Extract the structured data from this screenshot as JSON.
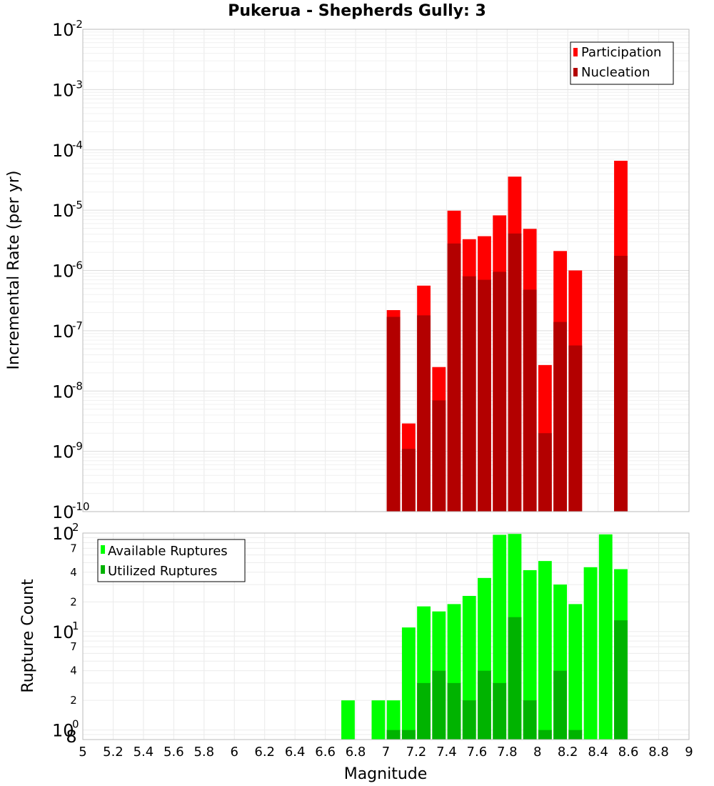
{
  "chart_data": [
    {
      "type": "bar",
      "title": "Pukerua - Shepherds Gully: 3",
      "xlabel": "",
      "ylabel": "Incremental Rate (per yr)",
      "yscale": "log",
      "xlim": [
        5,
        9
      ],
      "ylim": [
        1e-10,
        0.01
      ],
      "grid": true,
      "legend_position": "top-right",
      "bar_width": 0.1,
      "x": [
        7.05,
        7.15,
        7.25,
        7.35,
        7.45,
        7.55,
        7.65,
        7.75,
        7.85,
        7.95,
        8.05,
        8.15,
        8.25,
        8.55
      ],
      "series": [
        {
          "name": "Participation",
          "color": "#ff0000",
          "values": [
            2.2e-07,
            2.9e-09,
            5.6e-07,
            2.5e-08,
            9.8e-06,
            3.3e-06,
            3.7e-06,
            8.2e-06,
            3.6e-05,
            4.9e-06,
            2.7e-08,
            2.1e-06,
            1e-06,
            6.6e-05
          ]
        },
        {
          "name": "Nucleation",
          "color": "#b30000",
          "values": [
            1.7e-07,
            1.1e-09,
            1.8e-07,
            7e-09,
            2.8e-06,
            8e-07,
            7e-07,
            9.5e-07,
            4.1e-06,
            4.8e-07,
            2e-09,
            1.4e-07,
            5.7e-08,
            1.75e-06
          ]
        }
      ],
      "y_ticks": [
        {
          "base": "10",
          "exp": "-2"
        },
        {
          "base": "10",
          "exp": "-3"
        },
        {
          "base": "10",
          "exp": "-4"
        },
        {
          "base": "10",
          "exp": "-5"
        },
        {
          "base": "10",
          "exp": "-6"
        },
        {
          "base": "10",
          "exp": "-7"
        },
        {
          "base": "10",
          "exp": "-8"
        },
        {
          "base": "10",
          "exp": "-9"
        },
        {
          "base": "10",
          "exp": "-10"
        }
      ]
    },
    {
      "type": "bar",
      "title": "",
      "xlabel": "Magnitude",
      "ylabel": "Rupture Count",
      "yscale": "log",
      "xlim": [
        5,
        9
      ],
      "ylim": [
        0.8,
        100
      ],
      "grid": true,
      "legend_position": "top-left",
      "bar_width": 0.1,
      "x": [
        6.75,
        6.95,
        7.05,
        7.15,
        7.25,
        7.35,
        7.45,
        7.55,
        7.65,
        7.75,
        7.85,
        7.95,
        8.05,
        8.15,
        8.25,
        8.35,
        8.45,
        8.55
      ],
      "series": [
        {
          "name": "Available Ruptures",
          "color": "#00ff00",
          "values": [
            2,
            2,
            2,
            11,
            18,
            16,
            19,
            23,
            35,
            96,
            98,
            42,
            52,
            30,
            19,
            45,
            97,
            43
          ]
        },
        {
          "name": "Utilized Ruptures",
          "color": "#00b300",
          "values": [
            0,
            0,
            1,
            1,
            3,
            4,
            3,
            2,
            4,
            3,
            14,
            2,
            1,
            4,
            1,
            0,
            0,
            13
          ]
        }
      ],
      "y_major_ticks": [
        {
          "base": "10",
          "exp": "2"
        },
        {
          "base": "10",
          "exp": "1"
        },
        {
          "base": "10",
          "exp": "0"
        }
      ],
      "y_minor_ticks": [
        {
          "value": 70,
          "label": "7"
        },
        {
          "value": 40,
          "label": "4"
        },
        {
          "value": 20,
          "label": "2"
        },
        {
          "value": 7,
          "label": "7"
        },
        {
          "value": 4,
          "label": "4"
        },
        {
          "value": 2,
          "label": "2"
        },
        {
          "value": 0.8,
          "label": "8"
        }
      ],
      "x_ticks": [
        "5",
        "5.2",
        "5.4",
        "5.6",
        "5.8",
        "6",
        "6.2",
        "6.4",
        "6.6",
        "6.8",
        "7",
        "7.2",
        "7.4",
        "7.6",
        "7.8",
        "8",
        "8.2",
        "8.4",
        "8.6",
        "8.8",
        "9"
      ]
    }
  ]
}
